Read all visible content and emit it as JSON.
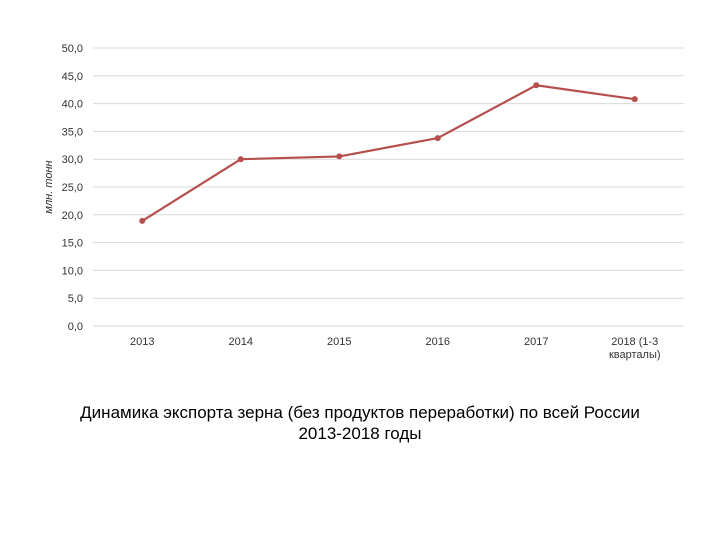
{
  "chart_data": {
    "type": "line",
    "categories": [
      "2013",
      "2014",
      "2015",
      "2016",
      "2017",
      "2018 (1-3 кварталы)"
    ],
    "category_lines": [
      [
        "2013"
      ],
      [
        "2014"
      ],
      [
        "2015"
      ],
      [
        "2016"
      ],
      [
        "2017"
      ],
      [
        "2018 (1-3",
        "кварталы)"
      ]
    ],
    "series": [
      {
        "values": [
          18.9,
          30.0,
          30.5,
          33.8,
          43.3,
          40.8
        ]
      }
    ],
    "ylabel": "млн. тонн",
    "ylim": [
      0,
      50
    ],
    "yticks": [
      "0,0",
      "5,0",
      "10,0",
      "15,0",
      "20,0",
      "25,0",
      "30,0",
      "35,0",
      "40,0",
      "45,0",
      "50,0"
    ],
    "grid": true,
    "legend": "none",
    "line_color": "#b5504d",
    "grid_color": "#d9d9d9"
  },
  "caption": {
    "line1": "Динамика экспорта зерна (без продуктов переработки) по всей России",
    "line2": "2013-2018 годы"
  }
}
